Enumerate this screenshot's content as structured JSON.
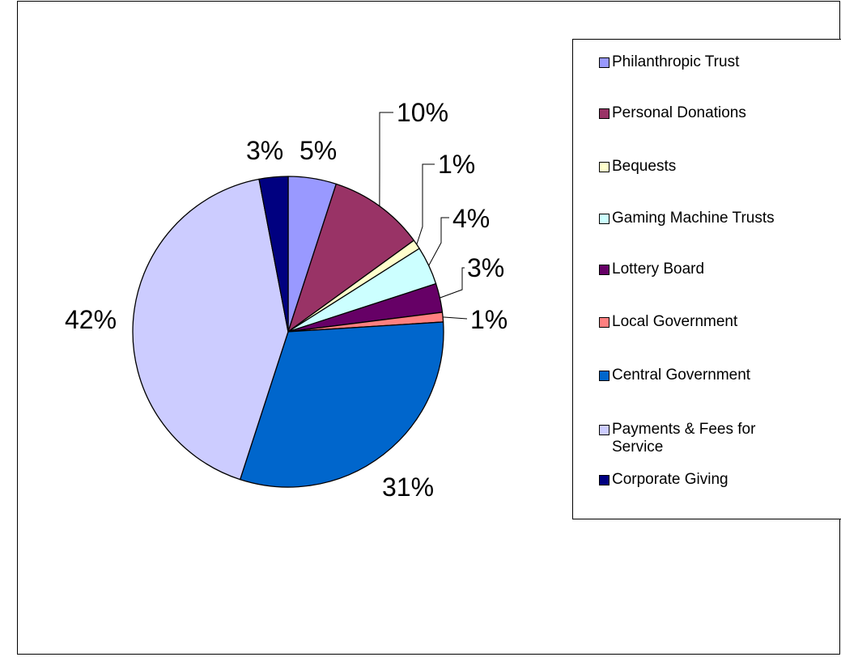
{
  "chart_data": {
    "type": "pie",
    "slices": [
      {
        "name": "Philanthropic Trust",
        "value": 5,
        "label": "5%",
        "color": "#9999FF"
      },
      {
        "name": "Personal Donations",
        "value": 10,
        "label": "10%",
        "color": "#993366"
      },
      {
        "name": "Bequests",
        "value": 1,
        "label": "1%",
        "color": "#FFFFCC"
      },
      {
        "name": "Gaming Machine Trusts",
        "value": 4,
        "label": "4%",
        "color": "#CCFFFF"
      },
      {
        "name": "Lottery Board",
        "value": 3,
        "label": "3%",
        "color": "#660066"
      },
      {
        "name": "Local Government",
        "value": 1,
        "label": "1%",
        "color": "#FF8080"
      },
      {
        "name": "Central Government",
        "value": 31,
        "label": "31%",
        "color": "#0066CC"
      },
      {
        "name": "Payments & Fees for Service",
        "value": 42,
        "label": "42%",
        "color": "#CCCCFF"
      },
      {
        "name": "Corporate Giving",
        "value": 3,
        "label": "3%",
        "color": "#000080"
      }
    ],
    "legend_position": "right",
    "start_angle": "12 o'clock, clockwise"
  }
}
